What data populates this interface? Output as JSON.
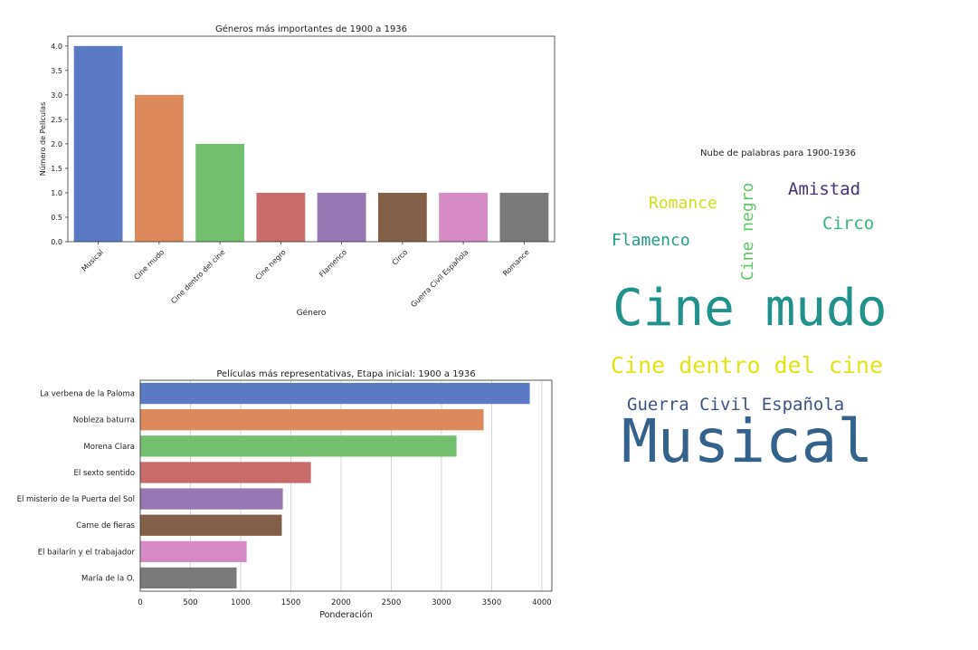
{
  "colors": {
    "palette": [
      "#5a7bc4",
      "#dc8a5c",
      "#72c06e",
      "#c86b6b",
      "#9577b4",
      "#845f47",
      "#d68bc5",
      "#7a7a7a"
    ],
    "axis": "#333333",
    "grid": "#cccccc"
  },
  "chart_data": [
    {
      "type": "bar",
      "title": "Géneros más importantes de 1900 a 1936",
      "xlabel": "Género",
      "ylabel": "Número de Películas",
      "categories": [
        "Musical",
        "Cine mudo",
        "Cine dentro del cine",
        "Cine negro",
        "Flamenco",
        "Circo",
        "Guerra Civil Española",
        "Romance"
      ],
      "values": [
        4,
        3,
        2,
        1,
        1,
        1,
        1,
        1
      ],
      "ylim": [
        0,
        4.2
      ],
      "yticks": [
        "0.0",
        "0.5",
        "1.0",
        "1.5",
        "2.0",
        "2.5",
        "3.0",
        "3.5",
        "4.0"
      ],
      "grid": false
    },
    {
      "type": "bar",
      "orientation": "horizontal",
      "title": "Películas más representativas, Etapa inicial: 1900 a 1936",
      "xlabel": "Ponderación",
      "ylabel": "",
      "categories": [
        "La verbena de la Paloma",
        "Nobleza baturra",
        "Morena Clara",
        "El sexto sentido",
        "El misterio de la Puerta del Sol",
        "Carne de fieras",
        "El bailarín y el trabajador",
        "María de la O."
      ],
      "values": [
        3880,
        3420,
        3150,
        1700,
        1420,
        1410,
        1060,
        960
      ],
      "xlim": [
        0,
        4100
      ],
      "xticks": [
        "0",
        "500",
        "1000",
        "1500",
        "2000",
        "2500",
        "3000",
        "3500",
        "4000"
      ],
      "grid": true
    }
  ],
  "wordcloud": {
    "title": "Nube de palabras para 1900-1936",
    "words": [
      {
        "text": "Musical",
        "color": "#33628d"
      },
      {
        "text": "Cine mudo",
        "color": "#21918c"
      },
      {
        "text": "Cine dentro del cine",
        "color": "#e2e418"
      },
      {
        "text": "Guerra Civil Española",
        "color": "#3b528b"
      },
      {
        "text": "Romance",
        "color": "#d0e11c"
      },
      {
        "text": "Flamenco",
        "color": "#1fa187"
      },
      {
        "text": "Amistad",
        "color": "#46337e"
      },
      {
        "text": "Circo",
        "color": "#35b779"
      },
      {
        "text": "Cine negro",
        "color": "#5ec962"
      }
    ]
  }
}
